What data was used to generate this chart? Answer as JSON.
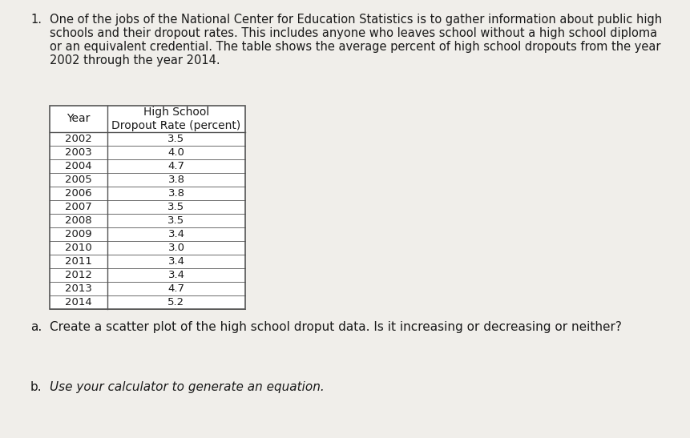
{
  "title_number": "1.",
  "para_lines": [
    "One of the jobs of the National Center for Education Statistics is to gather information about public high",
    "schools and their dropout rates. This includes anyone who leaves school without a high school diploma",
    "or an equivalent credential. The table shows the average percent of high school dropouts from the year",
    "2002 through the year 2014."
  ],
  "table_header_col1": "Year",
  "table_header_col2": "High School\nDropout Rate (percent)",
  "years": [
    2002,
    2003,
    2004,
    2005,
    2006,
    2007,
    2008,
    2009,
    2010,
    2011,
    2012,
    2013,
    2014
  ],
  "dropout_rates": [
    3.5,
    4.0,
    4.7,
    3.8,
    3.8,
    3.5,
    3.5,
    3.4,
    3.0,
    3.4,
    3.4,
    4.7,
    5.2
  ],
  "question_a_label": "a.",
  "question_a_text": "Create a scatter plot of the high school droput data. Is it increasing or decreasing or neither?",
  "question_b_label": "b.",
  "question_b_text": "Use your calculator to generate an equation.",
  "bg_color": "#e8e6e0",
  "page_color": "#f0eeea",
  "text_color": "#1a1a1a",
  "table_border_color": "#555555",
  "font_size_body": 10.5,
  "font_size_table": 10,
  "font_size_question": 11
}
